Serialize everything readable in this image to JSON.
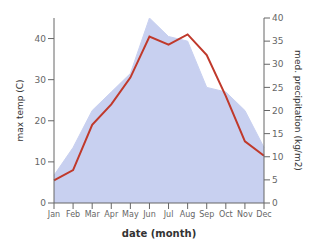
{
  "chart_data": {
    "type": "line",
    "xlabel": "date (month)",
    "ylabel": "max temp (C)",
    "y2label": "med. precipitation (kg/m2)",
    "categories": [
      "Jan",
      "Feb",
      "Mar",
      "Apr",
      "May",
      "Jun",
      "Jul",
      "Aug",
      "Sep",
      "Oct",
      "Nov",
      "Dec"
    ],
    "series": [
      {
        "type": "area",
        "axis": "y2",
        "color": "#c8d0f0",
        "values": [
          6.0,
          12.0,
          20.0,
          24.0,
          28.0,
          40.0,
          36.0,
          35.0,
          25.0,
          24.0,
          20.0,
          12.0
        ]
      },
      {
        "type": "line",
        "color": "#c0392b",
        "values": [
          5.5,
          8.0,
          19.0,
          24.0,
          30.5,
          40.5,
          38.5,
          41.0,
          36.0,
          26.0,
          15.0,
          11.5
        ]
      }
    ],
    "ylim": [
      0,
      45
    ],
    "yticks": [
      0,
      10,
      20,
      30,
      40
    ],
    "y2lim": [
      0,
      40
    ],
    "y2ticks": [
      0,
      5,
      10,
      15,
      20,
      25,
      30,
      35,
      40
    ]
  }
}
